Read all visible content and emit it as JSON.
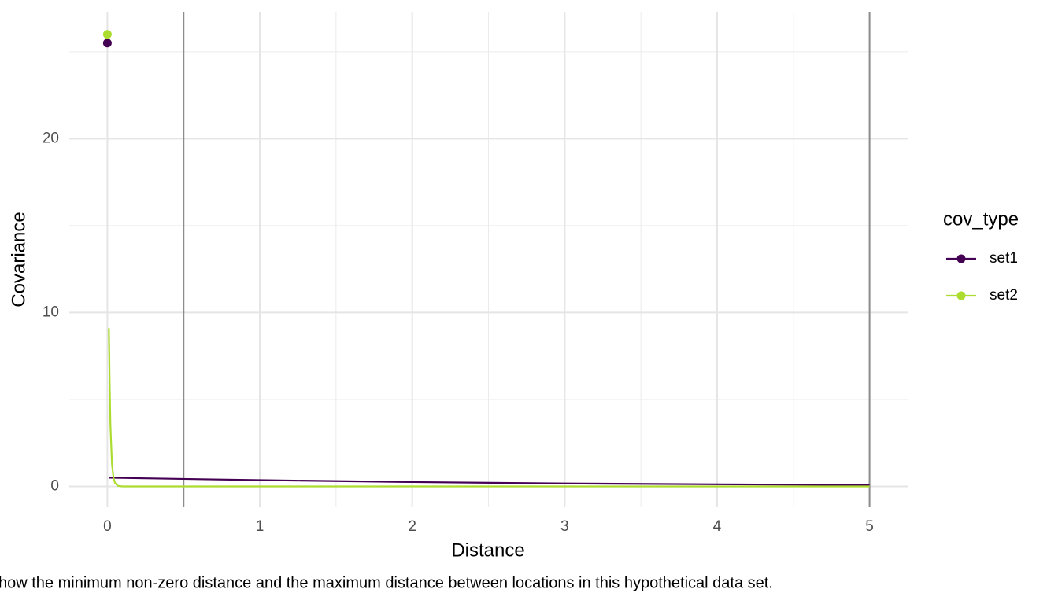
{
  "chart_data": {
    "type": "line",
    "x_label": "Distance",
    "y_label": "Covariance",
    "caption": "how the minimum non-zero distance and the maximum distance between locations in this hypothetical data set.",
    "legend_title": "cov_type",
    "legend": "right",
    "xlim": [
      -0.25,
      5.25
    ],
    "ylim": [
      -1.2,
      27.3
    ],
    "xticks": [
      0,
      1,
      2,
      3,
      4,
      5
    ],
    "yticks": [
      0,
      10,
      20
    ],
    "minor_xticks": [
      0.5,
      1.5,
      2.5,
      3.5,
      4.5
    ],
    "minor_yticks": [
      5,
      15,
      25
    ],
    "grid": true,
    "vlines": [
      0.5,
      5
    ],
    "series": [
      {
        "name": "set1",
        "color": "#440154",
        "x": [
          0.01,
          1,
          2,
          3,
          4,
          5
        ],
        "values": [
          0.5,
          0.36,
          0.25,
          0.17,
          0.12,
          0.08
        ],
        "point": {
          "x": 0,
          "y": 25.5
        }
      },
      {
        "name": "set2",
        "color": "#addc30",
        "x": [
          0.01,
          0.015,
          0.02,
          0.03,
          0.04,
          0.05,
          0.07,
          0.1,
          1,
          5
        ],
        "values": [
          9.1,
          6.0,
          3.5,
          1.3,
          0.5,
          0.2,
          0.03,
          0,
          0,
          0
        ],
        "point": {
          "x": 0,
          "y": 26.0
        }
      }
    ]
  }
}
